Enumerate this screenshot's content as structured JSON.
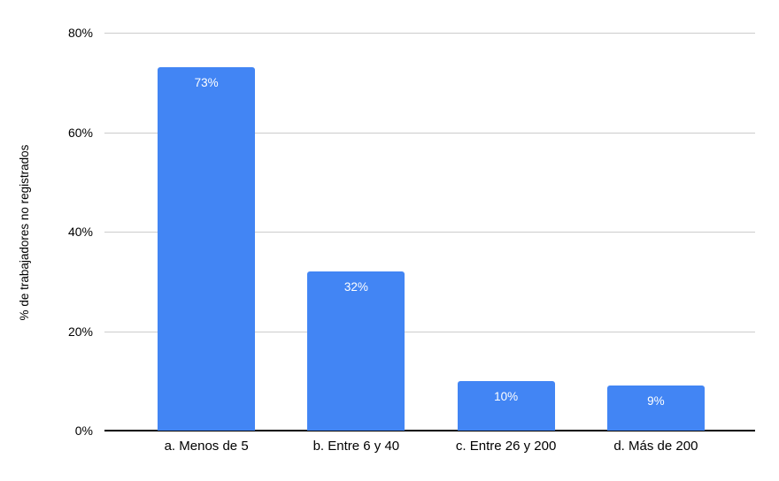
{
  "chart_data": {
    "type": "bar",
    "title": "",
    "xlabel": "",
    "ylabel": "% de trabajadores no registrados",
    "categories": [
      "a. Menos de 5",
      "b. Entre 6 y 40",
      "c. Entre 26 y 200",
      "d. Más de 200"
    ],
    "values": [
      73,
      32,
      10,
      9
    ],
    "value_labels": [
      "73%",
      "32%",
      "10%",
      "9%"
    ],
    "ylim": [
      0,
      80
    ],
    "yticks": [
      0,
      20,
      40,
      60,
      80
    ],
    "ytick_labels": [
      "0%",
      "20%",
      "40%",
      "60%",
      "80%"
    ],
    "grid": true,
    "legend_position": "none",
    "bar_color": "#4285f4",
    "value_label_color": "#ffffff",
    "gridline_color": "#cccccc",
    "axis_line_color": "#000000",
    "text_color": "#000000",
    "background_color": "#ffffff"
  }
}
